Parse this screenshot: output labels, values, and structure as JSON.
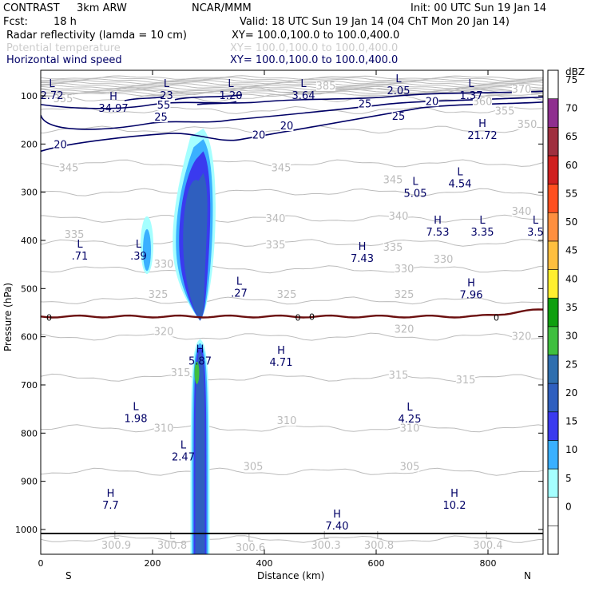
{
  "header": {
    "model": "CONTRAST",
    "config": "3km ARW",
    "source": "NCAR/MMM",
    "init": "Init: 00 UTC Sun 19 Jan 14",
    "fcst_label": "Fcst:",
    "fcst_value": "18 h",
    "valid": "Valid: 18 UTC Sun 19 Jan 14 (04 ChT Mon 20 Jan 14)",
    "fields": [
      {
        "name": "Radar reflectivity (lamda = 10 cm)",
        "xy": "XY= 100.0,100.0 to 100.0,400.0",
        "style": "black"
      },
      {
        "name": "Potential temperature",
        "xy": "XY= 100.0,100.0 to 100.0,400.0",
        "style": "gray"
      },
      {
        "name": "Horizontal wind speed",
        "xy": "XY= 100.0,100.0 to 100.0,400.0",
        "style": "navy"
      }
    ]
  },
  "colors": {
    "theta": "#bbbbbb",
    "wind": "#000066",
    "freezing": "#6b0f0f",
    "frame": "#000000"
  },
  "chart_data": {
    "type": "vertical cross-section",
    "xlabel": "Distance (km)",
    "ylabel": "Pressure (hPa)",
    "xlim": [
      0,
      900
    ],
    "ylim": [
      1050,
      50
    ],
    "x_ticks": [
      0,
      200,
      400,
      600,
      800
    ],
    "y_ticks": [
      100,
      200,
      300,
      400,
      500,
      600,
      700,
      800,
      900,
      1000
    ],
    "x_endpoints": {
      "left": "S",
      "right": "N"
    },
    "colorbar": {
      "unit": "dBZ",
      "levels": [
        0,
        5,
        10,
        15,
        20,
        25,
        30,
        35,
        40,
        45,
        50,
        55,
        60,
        65,
        70,
        75
      ],
      "colors": [
        "#ffffff",
        "#a5ffff",
        "#3ab0ff",
        "#3a3aef",
        "#2f5fbf",
        "#2f6faf",
        "#3fbf3f",
        "#0f9f0f",
        "#ffef2f",
        "#ffbf3f",
        "#ff8f3f",
        "#ff4f1f",
        "#cf1f1f",
        "#9f2f3f",
        "#8f2f8f",
        "#bf7fbf"
      ]
    },
    "theta_contours": [
      {
        "value": 300,
        "p": 1020
      },
      {
        "value": 305,
        "p": 880
      },
      {
        "value": 310,
        "p": 790
      },
      {
        "value": 315,
        "p": 685
      },
      {
        "value": 320,
        "p": 600
      },
      {
        "value": 325,
        "p": 525
      },
      {
        "value": 330,
        "p": 460
      },
      {
        "value": 335,
        "p": 405
      },
      {
        "value": 340,
        "p": 355
      },
      {
        "value": 345,
        "p": 300
      },
      {
        "value": 350,
        "p": 240
      },
      {
        "value": 355,
        "p": 170
      },
      {
        "value": 360,
        "p": 130
      },
      {
        "value": 370,
        "p": 105
      },
      {
        "value": 385,
        "p": 90
      }
    ],
    "theta_contour_labels": [
      {
        "text": "300.9",
        "x": 135,
        "p": 1040
      },
      {
        "text": "300.8",
        "x": 235,
        "p": 1040
      },
      {
        "text": "300.6",
        "x": 375,
        "p": 1045
      },
      {
        "text": "300.3",
        "x": 510,
        "p": 1040
      },
      {
        "text": "300.8",
        "x": 605,
        "p": 1040
      },
      {
        "text": "300.4",
        "x": 800,
        "p": 1040
      }
    ],
    "theta_label_positions": [
      {
        "value": 305,
        "x": 380,
        "p": 875
      },
      {
        "value": 305,
        "x": 660,
        "p": 875
      },
      {
        "value": 310,
        "x": 220,
        "p": 795
      },
      {
        "value": 310,
        "x": 440,
        "p": 780
      },
      {
        "value": 310,
        "x": 660,
        "p": 795
      },
      {
        "value": 315,
        "x": 250,
        "p": 680
      },
      {
        "value": 315,
        "x": 640,
        "p": 685
      },
      {
        "value": 315,
        "x": 760,
        "p": 695
      },
      {
        "value": 320,
        "x": 220,
        "p": 595
      },
      {
        "value": 320,
        "x": 650,
        "p": 590
      },
      {
        "value": 320,
        "x": 860,
        "p": 605
      },
      {
        "value": 325,
        "x": 210,
        "p": 518
      },
      {
        "value": 325,
        "x": 440,
        "p": 518
      },
      {
        "value": 325,
        "x": 650,
        "p": 518
      },
      {
        "value": 330,
        "x": 220,
        "p": 455
      },
      {
        "value": 330,
        "x": 650,
        "p": 465
      },
      {
        "value": 330,
        "x": 720,
        "p": 445
      },
      {
        "value": 335,
        "x": 60,
        "p": 393
      },
      {
        "value": 335,
        "x": 420,
        "p": 415
      },
      {
        "value": 335,
        "x": 630,
        "p": 420
      },
      {
        "value": 340,
        "x": 420,
        "p": 360
      },
      {
        "value": 340,
        "x": 640,
        "p": 355
      },
      {
        "value": 340,
        "x": 860,
        "p": 345
      },
      {
        "value": 345,
        "x": 50,
        "p": 255
      },
      {
        "value": 345,
        "x": 430,
        "p": 255
      },
      {
        "value": 345,
        "x": 630,
        "p": 280
      },
      {
        "value": 350,
        "x": 870,
        "p": 165
      },
      {
        "value": 355,
        "x": 40,
        "p": 112
      },
      {
        "value": 355,
        "x": 830,
        "p": 137
      },
      {
        "value": 360,
        "x": 790,
        "p": 117
      },
      {
        "value": 370,
        "x": 860,
        "p": 92
      },
      {
        "value": 385,
        "x": 510,
        "p": 85
      }
    ],
    "wind_labels": [
      {
        "value": 20,
        "x": 35,
        "p": 207
      },
      {
        "value": 20,
        "x": 390,
        "p": 187
      },
      {
        "value": 20,
        "x": 440,
        "p": 168
      },
      {
        "value": 20,
        "x": 700,
        "p": 117
      },
      {
        "value": 25,
        "x": 215,
        "p": 150
      },
      {
        "value": 25,
        "x": 580,
        "p": 122
      },
      {
        "value": 25,
        "x": 640,
        "p": 148
      },
      {
        "value": 55,
        "x": 220,
        "p": 125
      }
    ],
    "freezing_level": {
      "value": 0,
      "p_left": 558,
      "p_right": 542
    },
    "freezing_labels": [
      {
        "text": "0",
        "x": 15,
        "p": 560
      },
      {
        "text": "0",
        "x": 460,
        "p": 560
      },
      {
        "text": "0",
        "x": 485,
        "p": 558
      },
      {
        "text": "0",
        "x": 815,
        "p": 560
      }
    ],
    "hl_markers": [
      {
        "type": "L",
        "value": "2.72",
        "x": 20,
        "p": 82,
        "tone": "navy"
      },
      {
        "type": "L",
        "value": "23",
        "x": 225,
        "p": 82,
        "tone": "navy"
      },
      {
        "type": "L",
        "value": "1.20",
        "x": 340,
        "p": 82,
        "tone": "navy"
      },
      {
        "type": "L",
        "value": "3.64",
        "x": 470,
        "p": 82,
        "tone": "navy"
      },
      {
        "type": "L",
        "value": "2.05",
        "x": 640,
        "p": 72,
        "tone": "navy"
      },
      {
        "type": "L",
        "value": "1.37",
        "x": 770,
        "p": 82,
        "tone": "navy"
      },
      {
        "type": "H",
        "value": "34.97",
        "x": 130,
        "p": 108,
        "tone": "navy"
      },
      {
        "type": "H",
        "value": "21.72",
        "x": 790,
        "p": 165,
        "tone": "navy"
      },
      {
        "type": "L",
        "value": "5.05",
        "x": 670,
        "p": 285,
        "tone": "navy"
      },
      {
        "type": "L",
        "value": "4.54",
        "x": 750,
        "p": 265,
        "tone": "navy"
      },
      {
        "type": "H",
        "value": "7.53",
        "x": 710,
        "p": 365,
        "tone": "navy"
      },
      {
        "type": "L",
        "value": "3.35",
        "x": 790,
        "p": 365,
        "tone": "navy"
      },
      {
        "type": "L",
        "value": "3.5",
        "x": 885,
        "p": 365,
        "tone": "navy"
      },
      {
        "type": "L",
        "value": ".71",
        "x": 70,
        "p": 415,
        "tone": "navy"
      },
      {
        "type": "L",
        "value": ".39",
        "x": 175,
        "p": 415,
        "tone": "navy"
      },
      {
        "type": "H",
        "value": "7.43",
        "x": 575,
        "p": 420,
        "tone": "navy"
      },
      {
        "type": "L",
        "value": ".27",
        "x": 355,
        "p": 492,
        "tone": "navy"
      },
      {
        "type": "H",
        "value": "7.96",
        "x": 770,
        "p": 495,
        "tone": "navy"
      },
      {
        "type": "H",
        "value": "5.87",
        "x": 285,
        "p": 633,
        "tone": "navy"
      },
      {
        "type": "H",
        "value": "4.71",
        "x": 430,
        "p": 635,
        "tone": "navy"
      },
      {
        "type": "L",
        "value": "1.98",
        "x": 170,
        "p": 752,
        "tone": "navy"
      },
      {
        "type": "L",
        "value": "4.25",
        "x": 660,
        "p": 753,
        "tone": "navy"
      },
      {
        "type": "L",
        "value": "2.47",
        "x": 255,
        "p": 832,
        "tone": "navy"
      },
      {
        "type": "H",
        "value": "7.7",
        "x": 125,
        "p": 932,
        "tone": "navy"
      },
      {
        "type": "H",
        "value": "10.2",
        "x": 740,
        "p": 932,
        "tone": "navy"
      },
      {
        "type": "H",
        "value": "7.40",
        "x": 530,
        "p": 975,
        "tone": "navy"
      },
      {
        "type": "L",
        "value": "",
        "x": 135,
        "p": 1020,
        "tone": "gray"
      },
      {
        "type": "L",
        "value": "",
        "x": 235,
        "p": 1020,
        "tone": "gray"
      },
      {
        "type": "L",
        "value": "",
        "x": 375,
        "p": 1025,
        "tone": "gray"
      },
      {
        "type": "L",
        "value": "",
        "x": 510,
        "p": 1020,
        "tone": "gray"
      },
      {
        "type": "L",
        "value": "",
        "x": 605,
        "p": 1020,
        "tone": "gray"
      },
      {
        "type": "L",
        "value": "",
        "x": 800,
        "p": 1020,
        "tone": "gray"
      }
    ],
    "reflectivity_cells": [
      {
        "name": "main-convective-tower",
        "x_center": 285,
        "p_top": 180,
        "p_base": 1050,
        "max_dbz": 30
      },
      {
        "name": "small-cell-west",
        "x_center": 190,
        "p_top": 350,
        "p_base": 470,
        "max_dbz": 15
      }
    ]
  }
}
